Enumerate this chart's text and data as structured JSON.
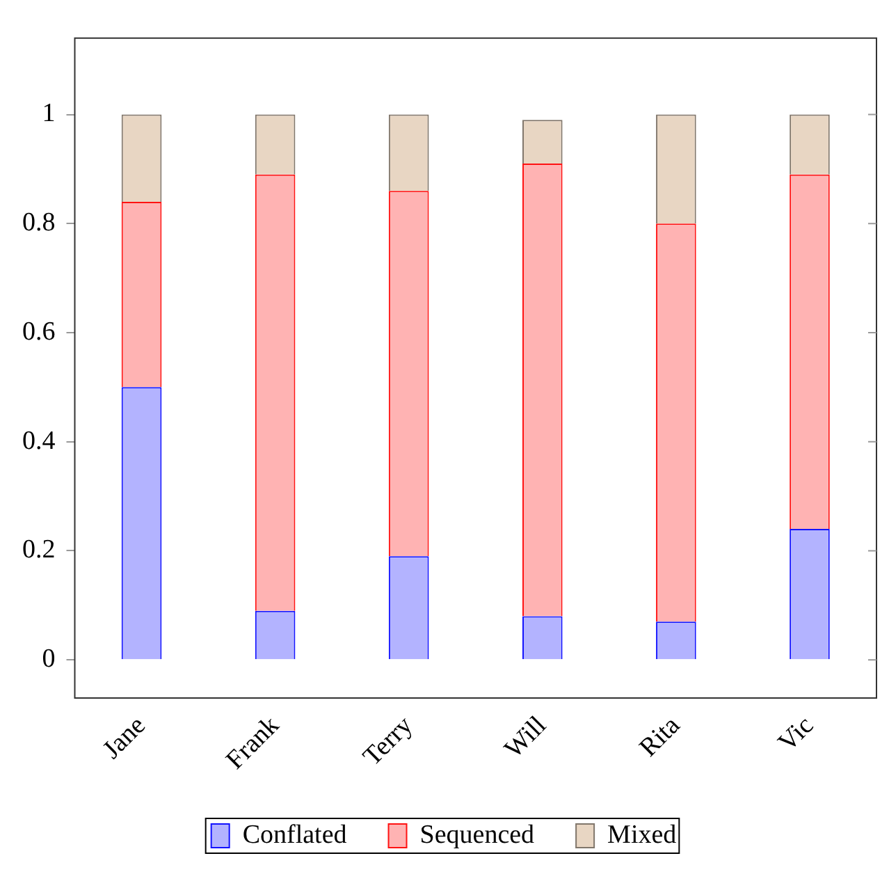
{
  "chart_data": {
    "type": "bar",
    "stacked": true,
    "categories": [
      "Jane",
      "Frank",
      "Terry",
      "Will",
      "Rita",
      "Vic"
    ],
    "series": [
      {
        "name": "Conflated",
        "color": "#b3b3ff",
        "values": [
          0.5,
          0.09,
          0.19,
          0.08,
          0.07,
          0.24
        ]
      },
      {
        "name": "Sequenced",
        "color": "#ffb3b3",
        "values": [
          0.34,
          0.8,
          0.67,
          0.83,
          0.73,
          0.65
        ]
      },
      {
        "name": "Mixed",
        "color": "#e8d6c3",
        "values": [
          0.16,
          0.11,
          0.14,
          0.08,
          0.2,
          0.11
        ]
      }
    ],
    "ylim": [
      -0.07,
      1.14
    ],
    "yticks": [
      0,
      0.2,
      0.4,
      0.6,
      0.8,
      1
    ],
    "grid": false,
    "legend": "bottom"
  }
}
